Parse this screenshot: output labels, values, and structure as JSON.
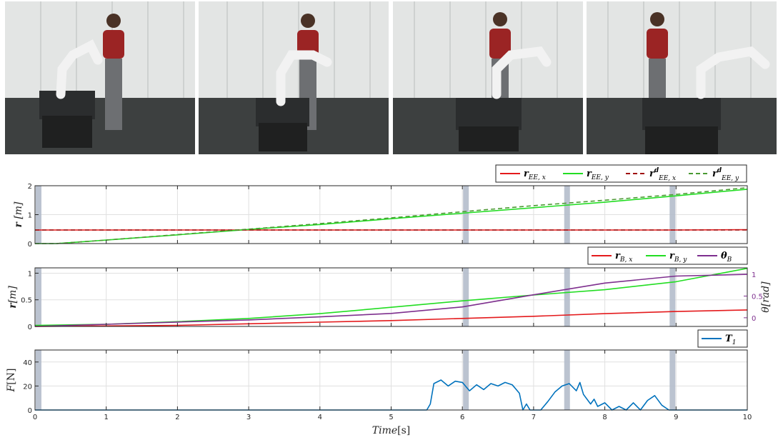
{
  "photos": [
    {
      "id": "photo-1"
    },
    {
      "id": "photo-2"
    },
    {
      "id": "photo-3"
    },
    {
      "id": "photo-4"
    }
  ],
  "colors": {
    "red": "#e41a1c",
    "green": "#22dd22",
    "dark_red": "#a01010",
    "dark_green": "#4a9a32",
    "purple": "#7e2f8e",
    "blue": "#0072bd",
    "event_band": "#b4bccb"
  },
  "xaxis": {
    "label": "Time[s]",
    "lim": [
      0,
      10
    ],
    "ticks": [
      0,
      1,
      2,
      3,
      4,
      5,
      6,
      7,
      8,
      9,
      10
    ]
  },
  "event_bands": [
    0.05,
    6.05,
    7.47,
    8.95
  ],
  "chart_data": [
    {
      "type": "line",
      "ylabel": "r [m]",
      "ylim": [
        0,
        2
      ],
      "yticks": [
        0,
        1,
        2
      ],
      "legend": [
        "r_EE,x",
        "r_EE,y",
        "r^d_EE,x",
        "r^d_EE,y"
      ],
      "legend_placement": "top-right",
      "series": [
        {
          "name": "r_EE,x",
          "x": [
            0,
            1,
            2,
            3,
            4,
            5,
            6,
            7,
            8,
            9,
            10
          ],
          "y": [
            0.47,
            0.47,
            0.47,
            0.47,
            0.47,
            0.47,
            0.47,
            0.47,
            0.47,
            0.47,
            0.48
          ]
        },
        {
          "name": "r_EE,y",
          "x": [
            0,
            0.3,
            1,
            2,
            3,
            4,
            5,
            6,
            7,
            8,
            9,
            10
          ],
          "y": [
            0.0,
            0.0,
            0.12,
            0.3,
            0.49,
            0.66,
            0.86,
            1.05,
            1.24,
            1.43,
            1.65,
            1.88
          ]
        },
        {
          "name": "r^d_EE,x",
          "x": [
            0,
            10
          ],
          "y": [
            0.47,
            0.47
          ]
        },
        {
          "name": "r^d_EE,y",
          "x": [
            0,
            0.3,
            1,
            2,
            3,
            4,
            5,
            6,
            7,
            8,
            9,
            10
          ],
          "y": [
            0.0,
            0.0,
            0.12,
            0.31,
            0.5,
            0.69,
            0.89,
            1.1,
            1.31,
            1.5,
            1.7,
            1.93
          ]
        }
      ]
    },
    {
      "type": "line",
      "ylabel": "r [m]",
      "ylabel_right": "θ[rad]",
      "ylim": [
        0,
        1.1
      ],
      "yticks": [
        "0",
        "0.5",
        "1"
      ],
      "ylim_right": [
        -0.2,
        1.15
      ],
      "yticks_right": [
        "0",
        "0.5",
        "1"
      ],
      "legend": [
        "r_B,x",
        "r_B,y",
        "θ_B"
      ],
      "legend_placement": "top-right",
      "series": [
        {
          "name": "r_B,x",
          "x": [
            0,
            1,
            2,
            3,
            4,
            5,
            6,
            7,
            8,
            9,
            10
          ],
          "y": [
            0.0,
            0.01,
            0.02,
            0.05,
            0.08,
            0.11,
            0.15,
            0.19,
            0.24,
            0.28,
            0.31
          ]
        },
        {
          "name": "r_B,y",
          "x": [
            0,
            1,
            2,
            3,
            4,
            5,
            6,
            7,
            8,
            9,
            10
          ],
          "y": [
            0.02,
            0.04,
            0.09,
            0.15,
            0.24,
            0.36,
            0.48,
            0.59,
            0.69,
            0.84,
            1.09
          ]
        },
        {
          "name": "θ_B",
          "x": [
            0,
            1,
            2,
            3,
            4,
            5,
            6,
            7,
            8,
            9,
            10
          ],
          "y": [
            -0.2,
            -0.15,
            -0.1,
            -0.05,
            0.02,
            0.1,
            0.25,
            0.53,
            0.8,
            0.96,
            1.0
          ]
        }
      ]
    },
    {
      "type": "line",
      "ylabel": "F[N]",
      "ylim": [
        0,
        50
      ],
      "yticks": [
        0,
        20,
        40
      ],
      "legend": [
        "T_1"
      ],
      "legend_placement": "top-right",
      "series": [
        {
          "name": "T_1",
          "x": [
            0,
            5.5,
            5.55,
            5.6,
            5.7,
            5.8,
            5.9,
            6.0,
            6.1,
            6.2,
            6.3,
            6.4,
            6.5,
            6.6,
            6.7,
            6.8,
            6.85,
            6.9,
            6.95,
            7.0,
            7.1,
            7.2,
            7.3,
            7.4,
            7.5,
            7.6,
            7.65,
            7.7,
            7.8,
            7.85,
            7.9,
            8.0,
            8.1,
            8.2,
            8.3,
            8.4,
            8.5,
            8.6,
            8.7,
            8.8,
            8.9,
            9.0,
            10
          ],
          "y": [
            0,
            0,
            5,
            22,
            25,
            20,
            24,
            23,
            16,
            21,
            17,
            22,
            20,
            23,
            21,
            14,
            0,
            5,
            0,
            0,
            0,
            7,
            15,
            20,
            22,
            16,
            23,
            13,
            5,
            9,
            3,
            6,
            0,
            3,
            0,
            6,
            0,
            8,
            12,
            4,
            0,
            0,
            0
          ]
        }
      ]
    }
  ]
}
